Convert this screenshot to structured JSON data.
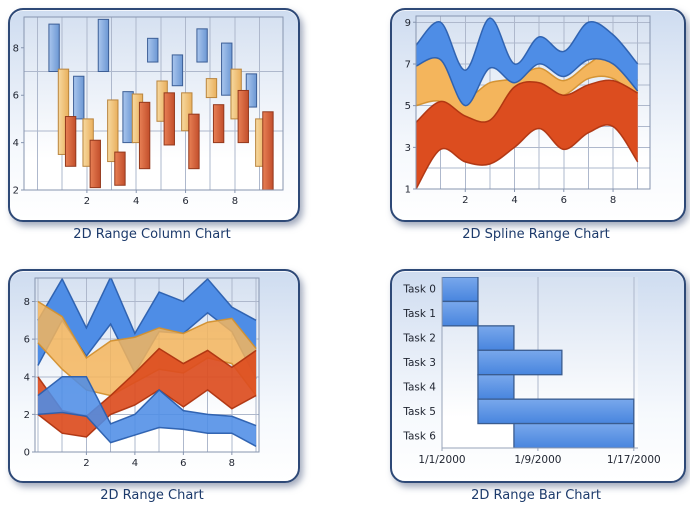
{
  "theme": {
    "panel_border": "#2E4977",
    "panel_bg_top": "#CEDCF0",
    "panel_bg_bottom": "#FFFFFF",
    "title_color": "#1C3A6B",
    "label_color": "#1F2430",
    "grid": "#AEB8CC",
    "frame": "#8795AF",
    "axis": "#97A3B8",
    "plot_bg_top": "#D6E1F1",
    "plot_bg_bottom": "#FFFFFF",
    "blue": "#4E8DE6",
    "orange": "#F4B55C",
    "red": "#DC4D1F"
  },
  "chart_data": [
    {
      "type": "range_column",
      "title": "2D Range Column Chart",
      "x": [
        1,
        2,
        3,
        4,
        5,
        6,
        7,
        8,
        9
      ],
      "xlim": [
        -0.55,
        9.95
      ],
      "ylim": [
        2,
        9.3
      ],
      "grid_x": [
        0,
        1,
        2,
        3,
        4,
        5,
        6,
        7,
        8,
        9
      ],
      "grid_y": [
        4.5,
        7
      ],
      "x_ticks": [
        {
          "v": 2,
          "label": "2"
        },
        {
          "v": 4,
          "label": "4"
        },
        {
          "v": 6,
          "label": "6"
        },
        {
          "v": 8,
          "label": "8"
        }
      ],
      "y_ticks": [
        {
          "v": 2,
          "label": "2"
        },
        {
          "v": 4,
          "label": "4"
        },
        {
          "v": 6,
          "label": "6"
        },
        {
          "v": 8,
          "label": "8"
        }
      ],
      "frame": true,
      "bar_width": 0.42,
      "series": [
        {
          "name": "blue",
          "color_light": "#A9C6EE",
          "color_dark": "#6B97D3",
          "border": "#3C5E96",
          "offset": -0.33,
          "ranges": [
            [
              7,
              9
            ],
            [
              5,
              6.8
            ],
            [
              7,
              9.2
            ],
            [
              4,
              6.15
            ],
            [
              7.4,
              8.4
            ],
            [
              6.4,
              7.7
            ],
            [
              7.4,
              8.8
            ],
            [
              6,
              8.2
            ],
            [
              5.5,
              6.9
            ]
          ]
        },
        {
          "name": "orange",
          "color_light": "#F7D9A0",
          "color_dark": "#E9AF5C",
          "border": "#B9853E",
          "offset": 0.05,
          "ranges": [
            [
              3.5,
              7.1
            ],
            [
              3,
              5
            ],
            [
              3.2,
              5.8
            ],
            [
              4,
              6.05
            ],
            [
              4.9,
              6.6
            ],
            [
              4.5,
              6.1
            ],
            [
              5.9,
              6.7
            ],
            [
              5,
              7.1
            ],
            [
              3,
              5
            ]
          ]
        },
        {
          "name": "red",
          "color_light": "#E88055",
          "color_dark": "#C24E2B",
          "border": "#94391D",
          "offset": 0.34,
          "ranges": [
            [
              3,
              5.1
            ],
            [
              2.1,
              4.1
            ],
            [
              2.2,
              3.6
            ],
            [
              2.9,
              5.7
            ],
            [
              3.9,
              6.1
            ],
            [
              2.9,
              5.2
            ],
            [
              4,
              5.6
            ],
            [
              4,
              6.2
            ],
            [
              1.9,
              5.3
            ]
          ]
        }
      ]
    },
    {
      "type": "spline_range",
      "title": "2D Spline Range Chart",
      "x": [
        0,
        1,
        2,
        3,
        4,
        5,
        6,
        7,
        8,
        9
      ],
      "xlim": [
        0,
        9.5
      ],
      "ylim": [
        1,
        9.3
      ],
      "grid_x": [
        1,
        2,
        3,
        4,
        5,
        6,
        7,
        8,
        9
      ],
      "grid_y": [
        2,
        3,
        4,
        5,
        6,
        7,
        8,
        9
      ],
      "x_ticks": [
        {
          "v": 2,
          "label": "2"
        },
        {
          "v": 4,
          "label": "4"
        },
        {
          "v": 6,
          "label": "6"
        },
        {
          "v": 8,
          "label": "8"
        }
      ],
      "y_ticks": [
        {
          "v": 1,
          "label": "1"
        },
        {
          "v": 3,
          "label": "3"
        },
        {
          "v": 5,
          "label": "5"
        },
        {
          "v": 7,
          "label": "7"
        },
        {
          "v": 9,
          "label": "9"
        }
      ],
      "frame": true,
      "series": [
        {
          "name": "orange",
          "color": "#F4B55C",
          "stroke": "#D2902F",
          "opacity": 1,
          "lo": [
            5.0,
            5.2,
            4.3,
            3.6,
            4.0,
            5.6,
            5.5,
            6.3,
            6.3,
            5.3
          ],
          "hi": [
            7.0,
            7.3,
            5.5,
            6.1,
            6.3,
            6.8,
            6.2,
            7.0,
            7.6,
            6.2
          ]
        },
        {
          "name": "blue",
          "color": "#4E8DE6",
          "stroke": "#2B5FAE",
          "opacity": 1,
          "lo": [
            6.9,
            7.2,
            5.0,
            6.8,
            6.1,
            7.0,
            6.4,
            7.2,
            7.0,
            5.7
          ],
          "hi": [
            7.9,
            9.0,
            6.7,
            9.2,
            7.0,
            8.3,
            7.6,
            9.0,
            8.4,
            7.0
          ]
        },
        {
          "name": "red",
          "color": "#DC4D1F",
          "stroke": "#AE3410",
          "opacity": 1,
          "lo": [
            1.0,
            2.9,
            2.3,
            2.2,
            3.0,
            3.9,
            2.9,
            3.7,
            4.0,
            2.3
          ],
          "hi": [
            4.2,
            5.2,
            4.5,
            4.3,
            5.9,
            6.1,
            5.5,
            6.0,
            6.2,
            5.6
          ]
        }
      ]
    },
    {
      "type": "range_area",
      "title": "2D Range Chart",
      "x": [
        0,
        1,
        2,
        3,
        4,
        5,
        6,
        7,
        8,
        9
      ],
      "xlim": [
        -0.12,
        9.12
      ],
      "ylim": [
        0,
        9.25
      ],
      "grid_x": [
        0,
        1,
        2,
        3,
        4,
        5,
        6,
        7,
        8,
        9
      ],
      "grid_y": [
        2,
        4,
        6,
        8
      ],
      "x_ticks": [
        {
          "v": 2,
          "label": "2"
        },
        {
          "v": 4,
          "label": "4"
        },
        {
          "v": 6,
          "label": "6"
        },
        {
          "v": 8,
          "label": "8"
        }
      ],
      "y_ticks": [
        {
          "v": 0,
          "label": "0"
        },
        {
          "v": 2,
          "label": "2"
        },
        {
          "v": 4,
          "label": "4"
        },
        {
          "v": 6,
          "label": "6"
        },
        {
          "v": 8,
          "label": "8"
        }
      ],
      "frame": true,
      "series": [
        {
          "name": "blue-upper",
          "color": "#4E8DE6",
          "stroke": "#2B5FAE",
          "opacity": 1,
          "lo": [
            4.6,
            7.0,
            5.1,
            6.8,
            4.2,
            6.4,
            6.3,
            7.4,
            6.4,
            3.9
          ],
          "hi": [
            7.0,
            9.2,
            6.6,
            9.3,
            6.3,
            8.5,
            8.0,
            9.2,
            7.7,
            7.0
          ]
        },
        {
          "name": "orange",
          "color": "#F4B55C",
          "stroke": "#D2902F",
          "opacity": 0.85,
          "lo": [
            5.8,
            4.4,
            3.3,
            3.0,
            3.7,
            4.4,
            4.2,
            5.0,
            4.7,
            3.0
          ],
          "hi": [
            8.0,
            7.2,
            5.0,
            5.9,
            6.1,
            6.6,
            6.3,
            6.9,
            7.1,
            5.5
          ]
        },
        {
          "name": "red",
          "color": "#DC4D1F",
          "stroke": "#AE3410",
          "opacity": 0.92,
          "lo": [
            2.0,
            1.0,
            0.8,
            2.0,
            2.5,
            3.3,
            2.4,
            3.3,
            2.3,
            3.0
          ],
          "hi": [
            4.0,
            2.2,
            1.9,
            3.0,
            4.2,
            5.5,
            4.7,
            5.4,
            4.5,
            5.4
          ]
        },
        {
          "name": "blue-lower",
          "color": "#4E8DE6",
          "stroke": "#2B5FAE",
          "opacity": 0.88,
          "lo": [
            2.0,
            2.1,
            1.9,
            0.5,
            0.9,
            1.3,
            1.2,
            1.0,
            1.0,
            0.3
          ],
          "hi": [
            3.0,
            4.0,
            4.0,
            1.5,
            2.0,
            3.3,
            2.2,
            2.0,
            1.9,
            1.4
          ]
        }
      ]
    },
    {
      "type": "range_bar",
      "title": "2D Range Bar Chart",
      "categories": [
        "Task 0",
        "Task 1",
        "Task 2",
        "Task 3",
        "Task 4",
        "Task 5",
        "Task 6"
      ],
      "ranges": [
        [
          0,
          3
        ],
        [
          0,
          3
        ],
        [
          3,
          6
        ],
        [
          3,
          10
        ],
        [
          3,
          6
        ],
        [
          3,
          16
        ],
        [
          6,
          16
        ]
      ],
      "xlim": [
        0,
        16.35
      ],
      "grid_x": [
        8,
        16
      ],
      "x_ticks": [
        {
          "v": 0,
          "label": "1/1/2000"
        },
        {
          "v": 8,
          "label": "1/9/2000"
        },
        {
          "v": 16,
          "label": "1/17/2000"
        }
      ],
      "frame": false,
      "bar": {
        "color_light": "#79A8EC",
        "color_dark": "#4885DE",
        "border": "#3A5C8F"
      }
    }
  ]
}
